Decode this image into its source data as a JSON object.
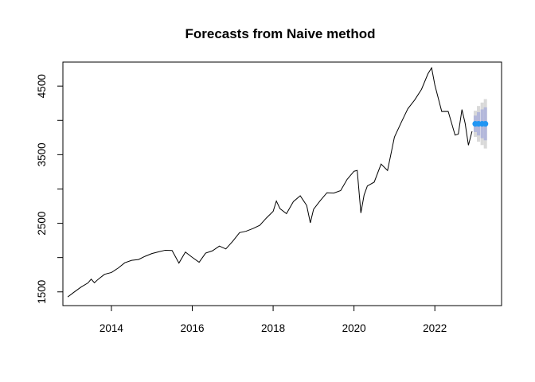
{
  "chart_data": {
    "type": "line",
    "title": "Forecasts from Naive method",
    "xlabel": "",
    "ylabel": "",
    "xlim": [
      2012.8,
      2023.65
    ],
    "ylim": [
      1300,
      4850
    ],
    "x_ticks": [
      2014,
      2016,
      2018,
      2020,
      2022
    ],
    "x_tick_labels": [
      "2014",
      "2016",
      "2018",
      "2020",
      "2022"
    ],
    "y_ticks": [
      1500,
      2000,
      2500,
      3000,
      3500,
      4000,
      4500
    ],
    "y_tick_labels": [
      "1500",
      "",
      "2500",
      "",
      "3500",
      "",
      "4500"
    ],
    "grid": false,
    "legend": "none",
    "colors": {
      "series": "#000000",
      "forecast": "#2196F3",
      "band80": "#B3B8DB",
      "band95": "#D9D9D9"
    },
    "series": [
      {
        "type": "line",
        "x": [
          2012.92,
          2013.08,
          2013.25,
          2013.42,
          2013.5,
          2013.58,
          2013.67,
          2013.83,
          2014.0,
          2014.17,
          2014.33,
          2014.5,
          2014.67,
          2014.83,
          2015.0,
          2015.17,
          2015.33,
          2015.5,
          2015.67,
          2015.83,
          2016.0,
          2016.17,
          2016.33,
          2016.5,
          2016.67,
          2016.83,
          2017.0,
          2017.17,
          2017.33,
          2017.5,
          2017.67,
          2017.83,
          2018.0,
          2018.08,
          2018.17,
          2018.33,
          2018.5,
          2018.67,
          2018.83,
          2018.92,
          2019.0,
          2019.17,
          2019.33,
          2019.5,
          2019.67,
          2019.83,
          2020.0,
          2020.08,
          2020.17,
          2020.25,
          2020.33,
          2020.5,
          2020.67,
          2020.83,
          2021.0,
          2021.17,
          2021.33,
          2021.5,
          2021.67,
          2021.83,
          2021.92,
          2022.0,
          2022.17,
          2022.33,
          2022.5,
          2022.58,
          2022.67,
          2022.75,
          2022.83,
          2022.92
        ],
        "y": [
          1426,
          1498,
          1570,
          1630,
          1685,
          1633,
          1682,
          1756,
          1782,
          1848,
          1924,
          1960,
          1972,
          2018,
          2058,
          2085,
          2107,
          2103,
          1920,
          2080,
          2003,
          1932,
          2065,
          2099,
          2168,
          2126,
          2238,
          2364,
          2384,
          2423,
          2471,
          2575,
          2673,
          2824,
          2713,
          2640,
          2816,
          2901,
          2760,
          2507,
          2704,
          2834,
          2945,
          2940,
          2977,
          3140,
          3258,
          3270,
          2650,
          2912,
          3044,
          3100,
          3363,
          3270,
          3756,
          3972,
          4168,
          4297,
          4453,
          4680,
          4766,
          4515,
          4130,
          4131,
          3785,
          3800,
          4158,
          3955,
          3638,
          3840
        ]
      },
      {
        "name": "forecast",
        "type": "points",
        "x": [
          2023.0,
          2023.08,
          2023.17,
          2023.25
        ],
        "y": [
          3950,
          3950,
          3950,
          3950
        ],
        "lo80": [
          3830,
          3780,
          3740,
          3710
        ],
        "hi80": [
          4070,
          4120,
          4160,
          4190
        ],
        "lo95": [
          3760,
          3690,
          3640,
          3590
        ],
        "hi95": [
          4140,
          4210,
          4260,
          4310
        ]
      }
    ]
  }
}
